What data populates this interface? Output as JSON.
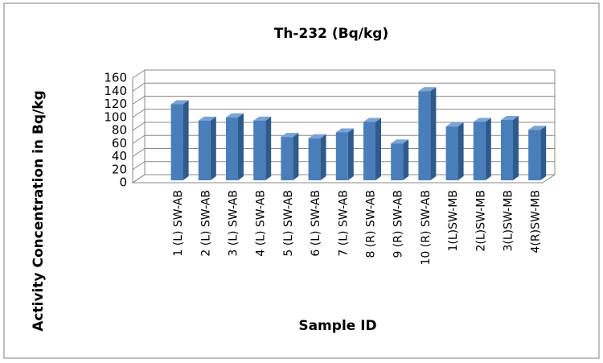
{
  "chart_data": {
    "type": "bar",
    "title": "Th-232 (Bq/kg)",
    "x_label": "Sample ID",
    "y_label": "Activity Concentration in Bq/kg",
    "categories": [
      "1 (L) SW-AB",
      "2 (L) SW-AB",
      "3 (L) SW-AB",
      "4 (L) SW-AB",
      "5 (L) SW-AB",
      "6 (L) SW-AB",
      "7 (L) SW-AB",
      "8 (R) SW-AB",
      "9 (R) SW-AB",
      "10 (R) SW-AB",
      "1(L)SW-MB",
      "2(L)SW-MB",
      "3(L)SW-MB",
      "4(R)SW-MB"
    ],
    "values": [
      120,
      95,
      100,
      95,
      70,
      68,
      77,
      93,
      60,
      140,
      86,
      93,
      96,
      81
    ],
    "color": "#4a7ebb",
    "ylim": [
      0,
      160
    ],
    "yticks": [
      0,
      20,
      40,
      60,
      80,
      100,
      120,
      140,
      160
    ],
    "grid": true
  }
}
